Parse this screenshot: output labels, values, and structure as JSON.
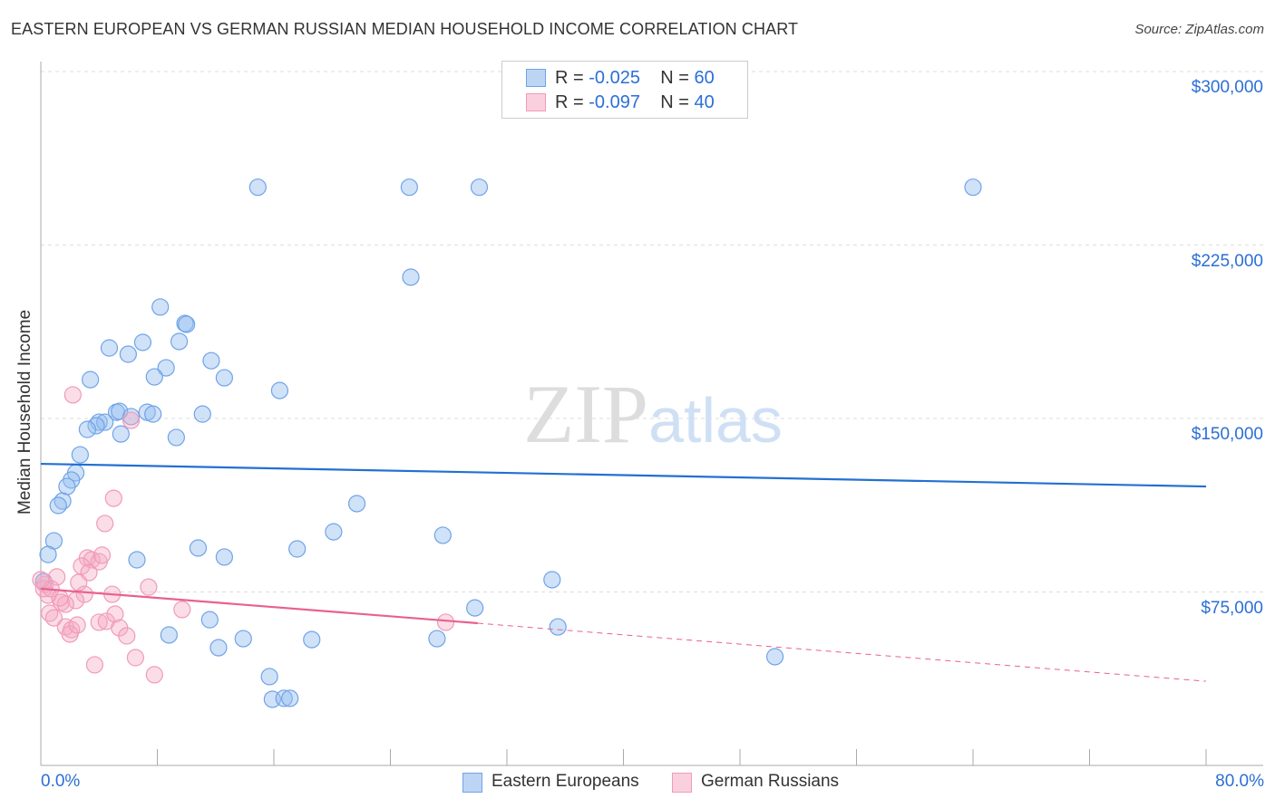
{
  "title": "EASTERN EUROPEAN VS GERMAN RUSSIAN MEDIAN HOUSEHOLD INCOME CORRELATION CHART",
  "source": "Source: ZipAtlas.com",
  "watermark": "ZIPatlas",
  "legend_top": [
    {
      "r_label": "R =",
      "r": "-0.025",
      "n_label": "N =",
      "n": "60"
    },
    {
      "r_label": "R =",
      "r": "-0.097",
      "n_label": "N =",
      "n": "40"
    }
  ],
  "chart_data": {
    "type": "scatter",
    "title": "EASTERN EUROPEAN VS GERMAN RUSSIAN MEDIAN HOUSEHOLD INCOME CORRELATION CHART",
    "xlabel": "",
    "ylabel": "Median Household Income",
    "xlim": [
      0,
      80
    ],
    "ylim": [
      0,
      312000
    ],
    "x_tick_labels": [
      "0.0%",
      "80.0%"
    ],
    "y_ticks": [
      75000,
      150000,
      225000,
      300000
    ],
    "y_tick_labels": [
      "$75,000",
      "$150,000",
      "$225,000",
      "$300,000"
    ],
    "grid": true,
    "legend_position": "bottom",
    "series": [
      {
        "name": "Eastern Europeans",
        "color": "#6fa3e8",
        "line_color": "#2370d1",
        "trend": {
          "x": [
            0,
            80
          ],
          "y": [
            130400,
            120600
          ]
        },
        "points": [
          [
            14.9,
            250000
          ],
          [
            25.3,
            250000
          ],
          [
            30.1,
            250000
          ],
          [
            64.0,
            250000
          ],
          [
            25.4,
            211100
          ],
          [
            8.2,
            198200
          ],
          [
            9.9,
            191100
          ],
          [
            10.0,
            190700
          ],
          [
            9.5,
            183300
          ],
          [
            7.0,
            182900
          ],
          [
            4.7,
            180500
          ],
          [
            6.0,
            177800
          ],
          [
            11.7,
            175000
          ],
          [
            8.6,
            171900
          ],
          [
            7.8,
            168000
          ],
          [
            12.6,
            167600
          ],
          [
            3.4,
            166800
          ],
          [
            16.4,
            162100
          ],
          [
            5.2,
            152700
          ],
          [
            5.4,
            153100
          ],
          [
            7.3,
            152700
          ],
          [
            7.7,
            151900
          ],
          [
            6.2,
            150800
          ],
          [
            11.1,
            151900
          ],
          [
            4.0,
            148400
          ],
          [
            4.4,
            148400
          ],
          [
            3.8,
            146900
          ],
          [
            3.2,
            145300
          ],
          [
            5.5,
            143300
          ],
          [
            9.3,
            141800
          ],
          [
            2.7,
            134300
          ],
          [
            2.4,
            126500
          ],
          [
            2.1,
            123400
          ],
          [
            1.8,
            120600
          ],
          [
            1.5,
            114300
          ],
          [
            1.2,
            112400
          ],
          [
            21.7,
            113200
          ],
          [
            0.9,
            97100
          ],
          [
            0.5,
            91200
          ],
          [
            27.6,
            99500
          ],
          [
            6.6,
            88900
          ],
          [
            10.8,
            94000
          ],
          [
            17.6,
            93600
          ],
          [
            20.1,
            101000
          ],
          [
            12.6,
            90100
          ],
          [
            35.1,
            80300
          ],
          [
            0.2,
            79500
          ],
          [
            29.8,
            68100
          ],
          [
            35.5,
            59900
          ],
          [
            11.6,
            63000
          ],
          [
            8.8,
            56400
          ],
          [
            13.9,
            54800
          ],
          [
            12.2,
            50900
          ],
          [
            18.6,
            54400
          ],
          [
            27.2,
            54800
          ],
          [
            50.4,
            47000
          ],
          [
            15.7,
            38400
          ],
          [
            15.9,
            28600
          ],
          [
            16.7,
            29000
          ],
          [
            17.1,
            29000
          ]
        ]
      },
      {
        "name": "German Russians",
        "color": "#f19bb7",
        "line_color": "#e8618f",
        "trend": {
          "x": [
            0,
            30
          ],
          "y": [
            76400,
            61500
          ]
        },
        "trend_extension": {
          "x": [
            30,
            80
          ],
          "y": [
            61500,
            36400
          ]
        },
        "points": [
          [
            2.2,
            160200
          ],
          [
            6.2,
            149200
          ],
          [
            5.0,
            115500
          ],
          [
            4.4,
            104600
          ],
          [
            3.2,
            89700
          ],
          [
            3.5,
            88900
          ],
          [
            2.8,
            86200
          ],
          [
            3.3,
            83400
          ],
          [
            2.6,
            79100
          ],
          [
            3.0,
            74000
          ],
          [
            4.9,
            74000
          ],
          [
            7.4,
            77100
          ],
          [
            0.3,
            78300
          ],
          [
            1.1,
            81500
          ],
          [
            0.5,
            73600
          ],
          [
            1.4,
            70500
          ],
          [
            0.6,
            65800
          ],
          [
            0.9,
            63800
          ],
          [
            2.4,
            71300
          ],
          [
            1.7,
            69700
          ],
          [
            1.7,
            59900
          ],
          [
            2.1,
            58700
          ],
          [
            2.0,
            56800
          ],
          [
            4.0,
            61900
          ],
          [
            4.5,
            62300
          ],
          [
            5.1,
            65400
          ],
          [
            5.4,
            59500
          ],
          [
            5.9,
            56000
          ],
          [
            9.7,
            67400
          ],
          [
            3.7,
            43500
          ],
          [
            6.5,
            46600
          ],
          [
            7.8,
            39200
          ],
          [
            27.8,
            61900
          ],
          [
            0.2,
            76400
          ],
          [
            0.7,
            76400
          ],
          [
            1.3,
            72400
          ],
          [
            0.0,
            80300
          ],
          [
            4.0,
            88100
          ],
          [
            4.2,
            90900
          ],
          [
            2.5,
            60700
          ]
        ]
      }
    ]
  }
}
